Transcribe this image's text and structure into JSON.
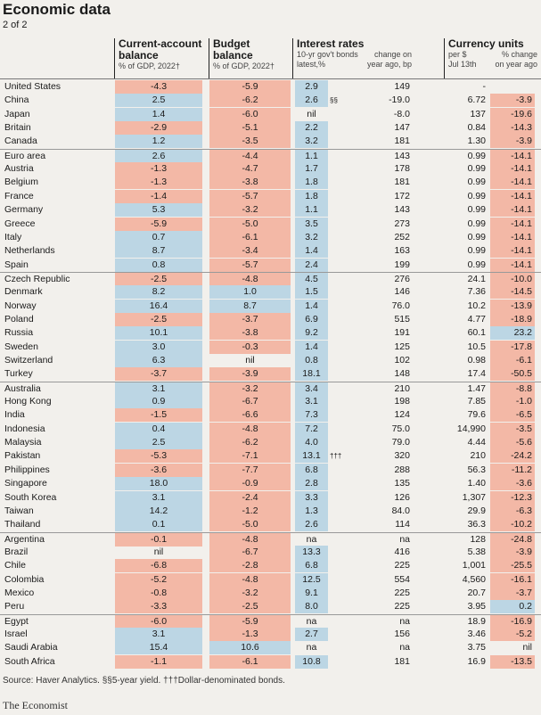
{
  "title": "Economic data",
  "subtitle": "2 of 2",
  "headers": {
    "ca": {
      "h1": "Current-account",
      "h2": "balance",
      "s": "% of GDP, 2022†"
    },
    "bb": {
      "h1": "Budget",
      "h2": "balance",
      "s": "% of GDP, 2022†"
    },
    "ir": {
      "h1": "Interest rates",
      "s1": "10-yr gov't bonds",
      "s2": "latest,%",
      "c1": "change on",
      "c2": "year ago, bp"
    },
    "cu": {
      "h1": "Currency units",
      "s1": "per $",
      "s2": "Jul 13th",
      "c1": "% change",
      "c2": "on year ago"
    }
  },
  "rows": [
    [
      "United States",
      "-4.3",
      "-5.9",
      "2.9",
      "",
      "149",
      "-",
      ""
    ],
    [
      "China",
      "2.5",
      "-6.2",
      "2.6",
      "§§",
      "-19.0",
      "6.72",
      "-3.9"
    ],
    [
      "Japan",
      "1.4",
      "-6.0",
      "nil",
      "",
      "-8.0",
      "137",
      "-19.6"
    ],
    [
      "Britain",
      "-2.9",
      "-5.1",
      "2.2",
      "",
      "147",
      "0.84",
      "-14.3"
    ],
    [
      "Canada",
      "1.2",
      "-3.5",
      "3.2",
      "",
      "181",
      "1.30",
      "-3.9"
    ],
    [
      "Euro area",
      "2.6",
      "-4.4",
      "1.1",
      "",
      "143",
      "0.99",
      "-14.1"
    ],
    [
      "Austria",
      "-1.3",
      "-4.7",
      "1.7",
      "",
      "178",
      "0.99",
      "-14.1"
    ],
    [
      "Belgium",
      "-1.3",
      "-3.8",
      "1.8",
      "",
      "181",
      "0.99",
      "-14.1"
    ],
    [
      "France",
      "-1.4",
      "-5.7",
      "1.8",
      "",
      "172",
      "0.99",
      "-14.1"
    ],
    [
      "Germany",
      "5.3",
      "-3.2",
      "1.1",
      "",
      "143",
      "0.99",
      "-14.1"
    ],
    [
      "Greece",
      "-5.9",
      "-5.0",
      "3.5",
      "",
      "273",
      "0.99",
      "-14.1"
    ],
    [
      "Italy",
      "0.7",
      "-6.1",
      "3.2",
      "",
      "252",
      "0.99",
      "-14.1"
    ],
    [
      "Netherlands",
      "8.7",
      "-3.4",
      "1.4",
      "",
      "163",
      "0.99",
      "-14.1"
    ],
    [
      "Spain",
      "0.8",
      "-5.7",
      "2.4",
      "",
      "199",
      "0.99",
      "-14.1"
    ],
    [
      "Czech Republic",
      "-2.5",
      "-4.8",
      "4.5",
      "",
      "276",
      "24.1",
      "-10.0"
    ],
    [
      "Denmark",
      "8.2",
      "1.0",
      "1.5",
      "",
      "146",
      "7.36",
      "-14.5"
    ],
    [
      "Norway",
      "16.4",
      "8.7",
      "1.4",
      "",
      "76.0",
      "10.2",
      "-13.9"
    ],
    [
      "Poland",
      "-2.5",
      "-3.7",
      "6.9",
      "",
      "515",
      "4.77",
      "-18.9"
    ],
    [
      "Russia",
      "10.1",
      "-3.8",
      "9.2",
      "",
      "191",
      "60.1",
      "23.2"
    ],
    [
      "Sweden",
      "3.0",
      "-0.3",
      "1.4",
      "",
      "125",
      "10.5",
      "-17.8"
    ],
    [
      "Switzerland",
      "6.3",
      "nil",
      "0.8",
      "",
      "102",
      "0.98",
      "-6.1"
    ],
    [
      "Turkey",
      "-3.7",
      "-3.9",
      "18.1",
      "",
      "148",
      "17.4",
      "-50.5"
    ],
    [
      "Australia",
      "3.1",
      "-3.2",
      "3.4",
      "",
      "210",
      "1.47",
      "-8.8"
    ],
    [
      "Hong Kong",
      "0.9",
      "-6.7",
      "3.1",
      "",
      "198",
      "7.85",
      "-1.0"
    ],
    [
      "India",
      "-1.5",
      "-6.6",
      "7.3",
      "",
      "124",
      "79.6",
      "-6.5"
    ],
    [
      "Indonesia",
      "0.4",
      "-4.8",
      "7.2",
      "",
      "75.0",
      "14,990",
      "-3.5"
    ],
    [
      "Malaysia",
      "2.5",
      "-6.2",
      "4.0",
      "",
      "79.0",
      "4.44",
      "-5.6"
    ],
    [
      "Pakistan",
      "-5.3",
      "-7.1",
      "13.1",
      "†††",
      "320",
      "210",
      "-24.2"
    ],
    [
      "Philippines",
      "-3.6",
      "-7.7",
      "6.8",
      "",
      "288",
      "56.3",
      "-11.2"
    ],
    [
      "Singapore",
      "18.0",
      "-0.9",
      "2.8",
      "",
      "135",
      "1.40",
      "-3.6"
    ],
    [
      "South Korea",
      "3.1",
      "-2.4",
      "3.3",
      "",
      "126",
      "1,307",
      "-12.3"
    ],
    [
      "Taiwan",
      "14.2",
      "-1.2",
      "1.3",
      "",
      "84.0",
      "29.9",
      "-6.3"
    ],
    [
      "Thailand",
      "0.1",
      "-5.0",
      "2.6",
      "",
      "114",
      "36.3",
      "-10.2"
    ],
    [
      "Argentina",
      "-0.1",
      "-4.8",
      "na",
      "",
      "na",
      "128",
      "-24.8"
    ],
    [
      "Brazil",
      "nil",
      "-6.7",
      "13.3",
      "",
      "416",
      "5.38",
      "-3.9"
    ],
    [
      "Chile",
      "-6.8",
      "-2.8",
      "6.8",
      "",
      "225",
      "1,001",
      "-25.5"
    ],
    [
      "Colombia",
      "-5.2",
      "-4.8",
      "12.5",
      "",
      "554",
      "4,560",
      "-16.1"
    ],
    [
      "Mexico",
      "-0.8",
      "-3.2",
      "9.1",
      "",
      "225",
      "20.7",
      "-3.7"
    ],
    [
      "Peru",
      "-3.3",
      "-2.5",
      "8.0",
      "",
      "225",
      "3.95",
      "0.2"
    ],
    [
      "Egypt",
      "-6.0",
      "-5.9",
      "na",
      "",
      "na",
      "18.9",
      "-16.9"
    ],
    [
      "Israel",
      "3.1",
      "-1.3",
      "2.7",
      "",
      "156",
      "3.46",
      "-5.2"
    ],
    [
      "Saudi Arabia",
      "15.4",
      "10.6",
      "na",
      "",
      "na",
      "3.75",
      "nil"
    ],
    [
      "South Africa",
      "-1.1",
      "-6.1",
      "10.8",
      "",
      "181",
      "16.9",
      "-13.5"
    ]
  ],
  "separators_after": [
    4,
    13,
    21,
    32,
    38
  ],
  "source": "Source: Haver Analytics.  §§5-year yield. †††Dollar-denominated bonds.",
  "brand": "The Economist"
}
